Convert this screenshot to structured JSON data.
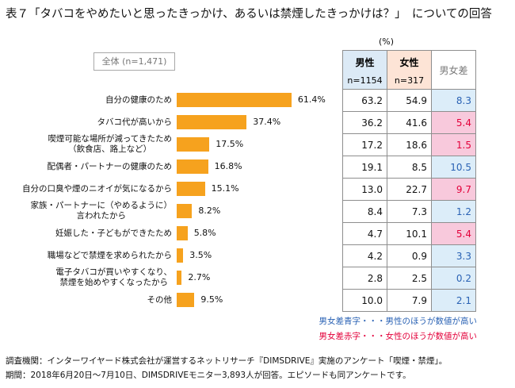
{
  "title": "表７「タバコをやめたいと思ったきっかけ、あるいは禁煙したきっかけは？」　についての回答",
  "colors": {
    "bar": "#f6a21e",
    "male_header_bg": "#dceaf6",
    "female_header_bg": "#fde4d6",
    "blue_text": "#2a62b4",
    "blue_bg": "#dcedf9",
    "red_text": "#e3003a",
    "red_bg": "#f8c9dc"
  },
  "chart_data": [
    {
      "type": "bar",
      "orientation": "horizontal",
      "label": "全体 (n=1,471)",
      "grid": false,
      "categories": [
        [
          "自分の健康のため"
        ],
        [
          "タバコ代が高いから"
        ],
        [
          "喫煙可能な場所が減ってきたため",
          "（飲食店、路上など）"
        ],
        [
          "配偶者・パートナーの健康のため"
        ],
        [
          "自分の口臭や煙のニオイが気になるから"
        ],
        [
          "家族・パートナーに（やめるように）",
          "言われたから"
        ],
        [
          "妊娠した・子どもができたため"
        ],
        [
          "職場などで禁煙を求められたから"
        ],
        [
          "電子タバコが買いやすくなり、",
          "禁煙を始めやすくなったから"
        ],
        [
          "その他"
        ]
      ],
      "values": [
        61.4,
        37.4,
        17.5,
        16.8,
        15.1,
        8.2,
        5.8,
        3.5,
        2.7,
        9.5
      ],
      "value_suffix": "%"
    },
    {
      "type": "table",
      "unit": "(%)",
      "columns": [
        {
          "name": "男性",
          "n": "n=1154"
        },
        {
          "name": "女性",
          "n": "n=317"
        },
        {
          "name": "男女差"
        }
      ],
      "rows": [
        {
          "male": 63.2,
          "female": 54.9,
          "diff": 8.3,
          "diff_color": "blue"
        },
        {
          "male": 36.2,
          "female": 41.6,
          "diff": 5.4,
          "diff_color": "red"
        },
        {
          "male": 17.2,
          "female": 18.6,
          "diff": 1.5,
          "diff_color": "red"
        },
        {
          "male": 19.1,
          "female": 8.5,
          "diff": 10.5,
          "diff_color": "blue"
        },
        {
          "male": 13.0,
          "female": 22.7,
          "diff": 9.7,
          "diff_color": "red"
        },
        {
          "male": 8.4,
          "female": 7.3,
          "diff": 1.2,
          "diff_color": "blue"
        },
        {
          "male": 4.7,
          "female": 10.1,
          "diff": 5.4,
          "diff_color": "red"
        },
        {
          "male": 4.2,
          "female": 0.9,
          "diff": 3.3,
          "diff_color": "blue"
        },
        {
          "male": 2.8,
          "female": 2.5,
          "diff": 0.2,
          "diff_color": "blue"
        },
        {
          "male": 10.0,
          "female": 7.9,
          "diff": 2.1,
          "diff_color": "blue"
        }
      ]
    }
  ],
  "legend": [
    {
      "text": "男女差青字・・・男性のほうが数値が高い",
      "color": "blue"
    },
    {
      "text": "男女差赤字・・・女性のほうが数値が高い",
      "color": "red"
    }
  ],
  "footer": [
    "調査機関：インターワイヤード株式会社が運営するネットリサーチ『DIMSDRIVE』実施のアンケート「喫煙・禁煙」。",
    "期間：2018年6月20日～7月10日、DIMSDRIVEモニター3,893人が回答。エピソードも同アンケートです。"
  ]
}
